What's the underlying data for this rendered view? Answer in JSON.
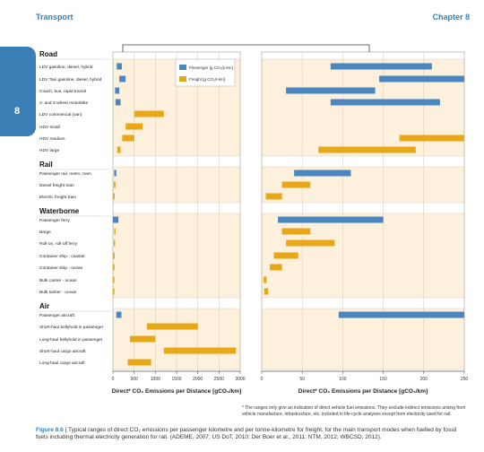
{
  "header": {
    "left": "Transport",
    "right": "Chapter 8"
  },
  "side_tab": {
    "label": "8"
  },
  "legend": {
    "passenger": "Passenger [g CO₂/p-km]",
    "freight": "Freight [g CO₂/t-km]"
  },
  "colors": {
    "passenger": "#4a86c0",
    "freight": "#e7a717",
    "panel": "#fdf0dc",
    "accent": "#3a7fb5"
  },
  "chart_data": [
    {
      "type": "bar",
      "subtype": "horizontal-range",
      "xlabel": "Direct* CO₂ Emissions per Distance [gCO₂/km]",
      "xlim": [
        0,
        3000
      ],
      "xticks": [
        0,
        500,
        1000,
        1500,
        2000,
        2500,
        3000
      ],
      "groups": [
        "Road",
        "Rail",
        "Waterborne",
        "Air"
      ],
      "categories": [
        "LDV gasoline, diesel, hybrid",
        "LDV Taxi gasoline, diesel, hybrid",
        "Coach, bus, rapid transit",
        "2- and 3-wheel motorbike",
        "LDV commercial (van)",
        "HDV small",
        "HDV medium",
        "HDV large",
        "Passenger rail, metro, tram",
        "Diesel freight train",
        "Electric freight train",
        "Passenger ferry",
        "Barge",
        "Roll-on, roll-off ferry",
        "Container ship - coastal",
        "Container ship - ocean",
        "Bulk carrier - ocean",
        "Bulk tanker - ocean",
        "Passenger aircraft",
        "Short-haul bellyhold in passenger",
        "Long-haul bellyhold in passenger",
        "Short-haul cargo aircraft",
        "Long-haul cargo aircraft"
      ],
      "series": [
        {
          "name": "Passenger",
          "values": [
            [
              90,
              210
            ],
            [
              150,
              300
            ],
            [
              50,
              150
            ],
            [
              60,
              180
            ],
            null,
            null,
            null,
            null,
            [
              30,
              80
            ],
            null,
            null,
            [
              0,
              130
            ],
            null,
            null,
            null,
            null,
            null,
            null,
            [
              80,
              200
            ],
            null,
            null,
            null,
            null
          ]
        },
        {
          "name": "Freight",
          "values": [
            null,
            null,
            null,
            null,
            [
              500,
              1200
            ],
            [
              300,
              700
            ],
            [
              220,
              500
            ],
            [
              100,
              180
            ],
            null,
            [
              20,
              60
            ],
            [
              10,
              40
            ],
            null,
            [
              30,
              60
            ],
            [
              20,
              50
            ],
            [
              10,
              30
            ],
            [
              5,
              20
            ],
            [
              2,
              10
            ],
            [
              2,
              12
            ],
            null,
            [
              800,
              2000
            ],
            [
              400,
              1000
            ],
            [
              1200,
              2900
            ],
            [
              350,
              900
            ]
          ]
        }
      ]
    },
    {
      "type": "bar",
      "subtype": "horizontal-range",
      "xlabel": "Direct* CO₂ Emissions per Distance [gCO₂/km]",
      "xlim": [
        0,
        250
      ],
      "xticks": [
        0,
        50,
        100,
        150,
        200,
        250
      ],
      "categories": [
        "LDV gasoline, diesel, hybrid",
        "LDV Taxi gasoline, diesel, hybrid",
        "Coach, bus, rapid transit",
        "2- and 3-wheel motorbike",
        "LDV commercial (van)",
        "HDV small",
        "HDV medium",
        "HDV large",
        "Passenger rail, metro, tram",
        "Diesel freight train",
        "Electric freight train",
        "Passenger ferry",
        "Barge",
        "Roll-on, roll-off ferry",
        "Container ship - coastal",
        "Container ship - ocean",
        "Bulk carrier - ocean",
        "Bulk tanker - ocean",
        "Passenger aircraft",
        "Short-haul bellyhold in passenger",
        "Long-haul bellyhold in passenger",
        "Short-haul cargo aircraft",
        "Long-haul cargo aircraft"
      ],
      "series": [
        {
          "name": "Passenger",
          "values": [
            [
              85,
              210
            ],
            [
              145,
              250
            ],
            [
              30,
              140
            ],
            [
              85,
              220
            ],
            null,
            null,
            null,
            null,
            [
              40,
              110
            ],
            null,
            null,
            [
              20,
              150
            ],
            null,
            null,
            null,
            null,
            null,
            null,
            [
              95,
              250
            ],
            null,
            null,
            null,
            null
          ]
        },
        {
          "name": "Freight",
          "values": [
            null,
            null,
            null,
            null,
            null,
            null,
            [
              170,
              250
            ],
            [
              70,
              190
            ],
            null,
            [
              25,
              60
            ],
            [
              5,
              25
            ],
            null,
            [
              25,
              60
            ],
            [
              30,
              90
            ],
            [
              15,
              45
            ],
            [
              10,
              25
            ],
            [
              2,
              6
            ],
            [
              3,
              8
            ],
            null,
            null,
            null,
            null,
            null
          ]
        }
      ]
    }
  ],
  "footnote": "* The ranges only give an indication of direct vehicle fuel emissions. They exclude indirect emissions arising from vehicle manufacture, infrastructure, etc. included in life-cycle analyses except from electricity used for rail.",
  "caption": {
    "label": "Figure 8.6 |",
    "text": "Typical ranges of direct CO₂ emissions per passenger kilometre and per tonne-kilometre for freight, for the main transport modes when fuelled by fossil fuels including thermal electricity generation for rail. (ADEME, 2007; US DoT, 2010; Der Boer et al., 2011; NTM, 2012; WBCSD, 2012)."
  }
}
